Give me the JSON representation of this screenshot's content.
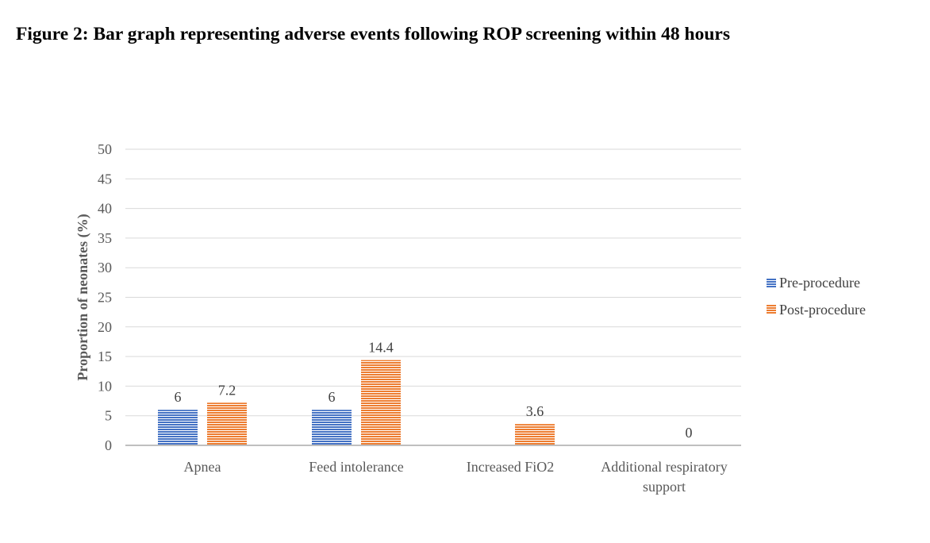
{
  "figure": {
    "title": "Figure 2: Bar graph representing adverse events following ROP screening within 48 hours"
  },
  "chart_data": {
    "type": "bar",
    "title": "",
    "xlabel": "",
    "ylabel": "Proportion of neonates (%)",
    "ylim": [
      0,
      50
    ],
    "yticks": [
      0,
      5,
      10,
      15,
      20,
      25,
      30,
      35,
      40,
      45,
      50
    ],
    "grid": true,
    "legend_position": "right",
    "categories": [
      [
        "Apnea"
      ],
      [
        "Feed intolerance"
      ],
      [
        "Increased FiO2"
      ],
      [
        "Additional respiratory",
        "support"
      ]
    ],
    "series": [
      {
        "name": "Pre-procedure",
        "color": "#4472C4",
        "values": [
          6,
          6,
          null,
          null
        ],
        "labels": [
          "6",
          "6",
          "",
          ""
        ]
      },
      {
        "name": "Post-procedure",
        "color": "#ED7D31",
        "values": [
          7.2,
          14.4,
          3.6,
          0
        ],
        "labels": [
          "7.2",
          "14.4",
          "3.6",
          "0"
        ]
      }
    ]
  }
}
